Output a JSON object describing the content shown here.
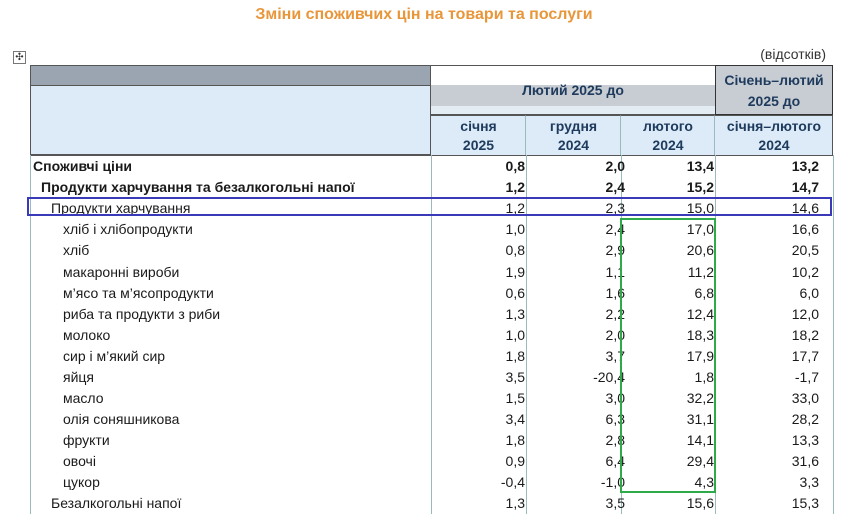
{
  "title": "Зміни споживчих цін на товари та послуги",
  "units": "(відсотків)",
  "move_handle_glyph": "✣",
  "header": {
    "feb_group": "Лютий 2025 до",
    "jan_feb_group_line1": "Січень–лютий",
    "jan_feb_group_line2": "2025 до",
    "sub": [
      {
        "line1": "січня",
        "line2": "2025"
      },
      {
        "line1": "грудня",
        "line2": "2024"
      },
      {
        "line1": "лютого",
        "line2": "2024"
      },
      {
        "line1": "січня–лютого",
        "line2": "2024"
      }
    ]
  },
  "rows": [
    {
      "label": "Споживчі ціни",
      "v": [
        "0,8",
        "2,0",
        "13,4",
        "13,2"
      ]
    },
    {
      "label": "Продукти харчування та безалкогольні напої",
      "v": [
        "1,2",
        "2,4",
        "15,2",
        "14,7"
      ]
    },
    {
      "label": "Продукти харчування",
      "v": [
        "1,2",
        "2,3",
        "15,0",
        "14,6"
      ]
    },
    {
      "label": "хліб і хлібопродукти",
      "v": [
        "1,0",
        "2,4",
        "17,0",
        "16,6"
      ]
    },
    {
      "label": "хліб",
      "v": [
        "0,8",
        "2,9",
        "20,6",
        "20,5"
      ]
    },
    {
      "label": "макаронні вироби",
      "v": [
        "1,9",
        "1,1",
        "11,2",
        "10,2"
      ]
    },
    {
      "label": "м’ясо та м’ясопродукти",
      "v": [
        "0,6",
        "1,6",
        "6,8",
        "6,0"
      ]
    },
    {
      "label": "риба та продукти з риби",
      "v": [
        "1,3",
        "2,2",
        "12,4",
        "12,0"
      ]
    },
    {
      "label": "молоко",
      "v": [
        "1,0",
        "2,0",
        "18,3",
        "18,2"
      ]
    },
    {
      "label": "сир і м’який сир",
      "v": [
        "1,8",
        "3,7",
        "17,9",
        "17,7"
      ]
    },
    {
      "label": "яйця",
      "v": [
        "3,5",
        "-20,4",
        "1,8",
        "-1,7"
      ]
    },
    {
      "label": "масло",
      "v": [
        "1,5",
        "3,0",
        "32,2",
        "33,0"
      ]
    },
    {
      "label": "олія соняшникова",
      "v": [
        "3,4",
        "6,3",
        "31,1",
        "28,2"
      ]
    },
    {
      "label": "фрукти",
      "v": [
        "1,8",
        "2,8",
        "14,1",
        "13,3"
      ]
    },
    {
      "label": "овочі",
      "v": [
        "0,9",
        "6,4",
        "29,4",
        "31,6"
      ]
    },
    {
      "label": "цукор",
      "v": [
        "-0,4",
        "-1,0",
        "4,3",
        "3,3"
      ]
    },
    {
      "label": "Безалкогольні напої",
      "v": [
        "1,3",
        "3,5",
        "15,6",
        "15,3"
      ]
    }
  ]
}
